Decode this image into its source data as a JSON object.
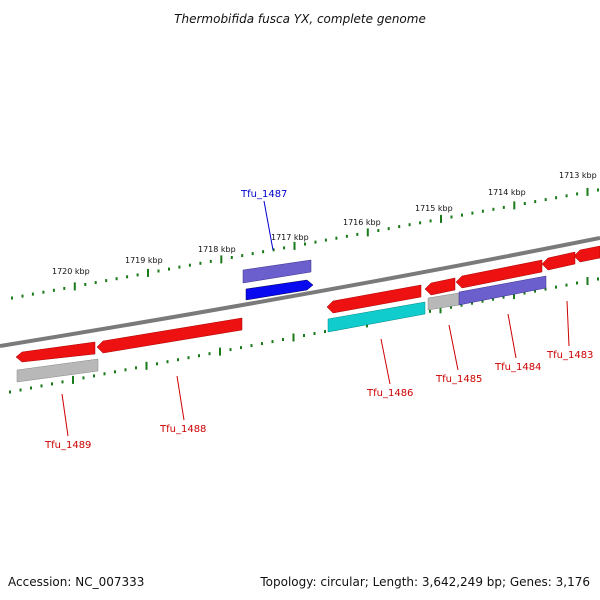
{
  "title": "Thermobifida fusca YX, complete genome",
  "footer": {
    "accession": "Accession: NC_007333",
    "summary": "Topology: circular; Length: 3,642,249 bp; Genes: 3,176"
  },
  "colors": {
    "backbone": "#7a7a7a",
    "tick": "#1a7a1a",
    "label_red": "#cc0000",
    "label_blue": "#0000cc",
    "gene_red": "#ee1111",
    "gene_cyan": "#11cccc",
    "gene_purple": "#6a5fcc",
    "gene_blue": "#0a0af0",
    "gene_gray": "#b8b8b8"
  },
  "kbp_labels": [
    "1720 kbp",
    "1719 kbp",
    "1718 kbp",
    "1717 kbp",
    "1716 kbp",
    "1715 kbp",
    "1714 kbp",
    "1713 kbp"
  ],
  "genes": [
    {
      "id": "Tfu_1489",
      "label": "Tfu_1489",
      "color": "red"
    },
    {
      "id": "Tfu_1488",
      "label": "Tfu_1488",
      "color": "red"
    },
    {
      "id": "Tfu_1487",
      "label": "Tfu_1487",
      "color": "blue"
    },
    {
      "id": "Tfu_1486",
      "label": "Tfu_1486",
      "color": "red"
    },
    {
      "id": "Tfu_1485",
      "label": "Tfu_1485",
      "color": "red"
    },
    {
      "id": "Tfu_1484",
      "label": "Tfu_1484",
      "color": "red"
    },
    {
      "id": "Tfu_1483",
      "label": "Tfu_1483",
      "color": "red"
    }
  ]
}
